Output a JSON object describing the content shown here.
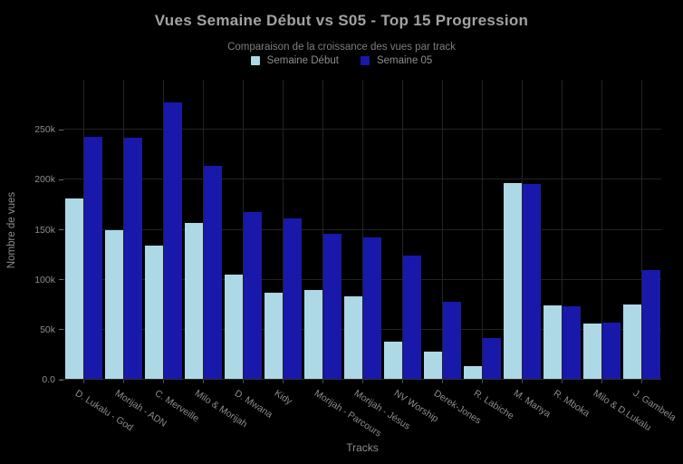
{
  "chart_data": {
    "type": "bar",
    "title": "Vues Semaine Début vs S05 - Top 15 Progression",
    "subtitle": "Comparaison de la croissance des vues par track",
    "xlabel": "Tracks",
    "ylabel": "Nombre de vues",
    "ylim": [
      0,
      300000
    ],
    "grid": true,
    "legend_position": "top-center",
    "background_color": "#000000",
    "yticks": [
      {
        "value": 0,
        "label": "0.0"
      },
      {
        "value": 50000,
        "label": "50k"
      },
      {
        "value": 100000,
        "label": "100k"
      },
      {
        "value": 150000,
        "label": "150k"
      },
      {
        "value": 200000,
        "label": "200k"
      },
      {
        "value": 250000,
        "label": "250k"
      }
    ],
    "categories": [
      "D. Lukalu - God",
      "Morijah - ADN",
      "C. Merveille",
      "Milo & Morijah",
      "D. Mwana",
      "Kidy",
      "Morijah - Parcours",
      "Morijah - Jésus",
      "NV Worship",
      "Derek-Jones",
      "R. Labiche",
      "M. Manya",
      "R. Mboka",
      "Milo & D.Lukalu",
      "J. Gambela"
    ],
    "series": [
      {
        "name": "Semaine Début",
        "color": "#ADD8E6",
        "values": [
          181000,
          150000,
          134000,
          157000,
          105000,
          87000,
          90000,
          83000,
          38000,
          28000,
          14000,
          197000,
          74000,
          56000,
          75000
        ]
      },
      {
        "name": "Semaine 05",
        "color": "#1818AA",
        "values": [
          243000,
          242000,
          277000,
          214000,
          168000,
          161000,
          146000,
          142000,
          124000,
          78000,
          42000,
          196000,
          73000,
          57000,
          110000
        ]
      }
    ]
  }
}
